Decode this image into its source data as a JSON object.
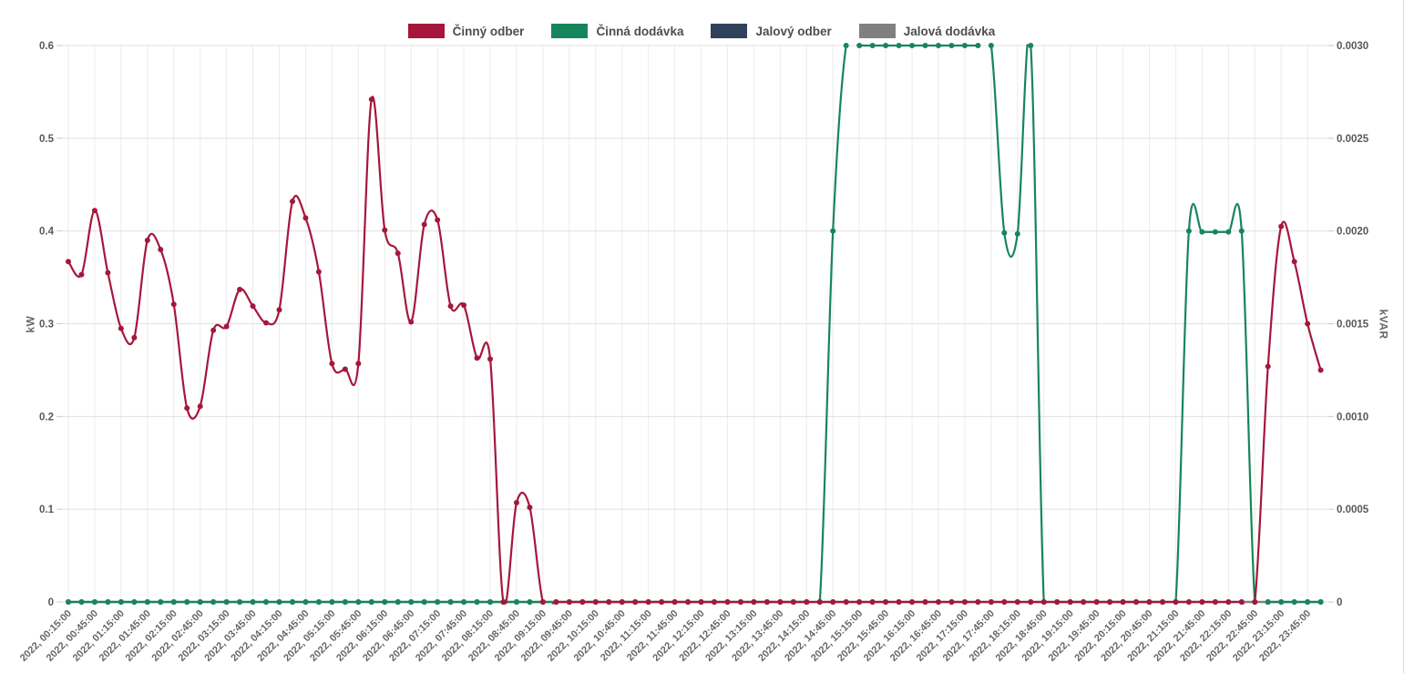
{
  "chart_data": {
    "type": "line",
    "smooth": true,
    "markers": true,
    "grid": true,
    "legend_position": "top",
    "x_axis": {
      "first_point": "2022, 00:15:00",
      "point_interval_minutes": 15,
      "points_per_tick": 2,
      "visible_tick_labels": [
        "2022, 00:15:00",
        "2022, 00:45:00",
        "2022, 01:15:00",
        "2022, 01:45:00",
        "2022, 02:15:00",
        "2022, 02:45:00",
        "2022, 03:15:00",
        "2022, 03:45:00",
        "2022, 04:15:00",
        "2022, 04:45:00",
        "2022, 05:15:00",
        "2022, 05:45:00",
        "2022, 06:15:00",
        "2022, 06:45:00",
        "2022, 07:15:00",
        "2022, 07:45:00",
        "2022, 08:15:00",
        "2022, 08:45:00",
        "2022, 09:15:00",
        "2022, 09:45:00",
        "2022, 10:15:00",
        "2022, 10:45:00",
        "2022, 11:15:00",
        "2022, 11:45:00",
        "2022, 12:15:00",
        "2022, 12:45:00",
        "2022, 13:15:00",
        "2022, 13:45:00",
        "2022, 14:15:00",
        "2022, 14:45:00",
        "2022, 15:15:00",
        "2022, 15:45:00",
        "2022, 16:15:00",
        "2022, 16:45:00",
        "2022, 17:15:00",
        "2022, 17:45:00",
        "2022, 18:15:00",
        "2022, 18:45:00",
        "2022, 19:15:00",
        "2022, 19:45:00",
        "2022, 20:15:00",
        "2022, 20:45:00",
        "2022, 21:15:00",
        "2022, 21:45:00",
        "2022, 22:15:00",
        "2022, 22:45:00",
        "2022, 23:15:00",
        "2022, 23:45:00"
      ]
    },
    "y_axis_left": {
      "title": "kW",
      "range": [
        0,
        0.6
      ],
      "tick_labels": [
        "0",
        "0.1",
        "0.2",
        "0.3",
        "0.4",
        "0.5",
        "0.6"
      ]
    },
    "y_axis_right": {
      "title": "kVAR",
      "range": [
        0,
        0.003
      ],
      "tick_labels": [
        "0",
        "0.0005",
        "0.0010",
        "0.0015",
        "0.0020",
        "0.0025",
        "0.0030"
      ]
    },
    "series": [
      {
        "name": "Činný odber",
        "color": "#A5173C",
        "y_axis": "kW",
        "values": [
          0.367,
          0.353,
          0.422,
          0.355,
          0.295,
          0.285,
          0.39,
          0.38,
          0.321,
          0.209,
          0.211,
          0.293,
          0.297,
          0.337,
          0.319,
          0.301,
          0.315,
          0.432,
          0.414,
          0.356,
          0.257,
          0.251,
          0.257,
          0.542,
          0.401,
          0.376,
          0.302,
          0.407,
          0.412,
          0.319,
          0.32,
          0.263,
          0.262,
          0,
          0.107,
          0.102,
          0,
          0,
          0,
          0,
          0,
          0,
          0,
          0,
          0,
          0,
          0,
          0,
          0,
          0,
          0,
          0,
          0,
          0,
          0,
          0,
          0,
          0,
          0,
          0,
          0,
          0,
          0,
          0,
          0,
          0,
          0,
          0,
          0,
          0,
          0,
          0,
          0,
          0,
          0,
          0,
          0,
          0,
          0,
          0,
          0,
          0,
          0,
          0,
          0,
          0,
          0,
          0,
          0,
          0,
          0,
          0.254,
          0.405,
          0.367,
          0.3,
          0.25
        ]
      },
      {
        "name": "Činná dodávka",
        "color": "#17855C",
        "y_axis": "kW",
        "values": [
          0,
          0,
          0,
          0,
          0,
          0,
          0,
          0,
          0,
          0,
          0,
          0,
          0,
          0,
          0,
          0,
          0,
          0,
          0,
          0,
          0,
          0,
          0,
          0,
          0,
          0,
          0,
          0,
          0,
          0,
          0,
          0,
          0,
          0,
          0,
          0,
          0,
          0,
          0,
          0,
          0,
          0,
          0,
          0,
          0,
          0,
          0,
          0,
          0,
          0,
          0,
          0,
          0,
          0,
          0,
          0,
          0,
          0,
          0.4,
          0.6,
          0.6,
          0.6,
          0.6,
          0.6,
          0.6,
          0.6,
          0.6,
          0.6,
          0.6,
          0.6,
          0.6,
          0.398,
          0.397,
          0.6,
          0,
          0,
          0,
          0,
          0,
          0,
          0,
          0,
          0,
          0,
          0,
          0.4,
          0.399,
          0.399,
          0.399,
          0.4,
          0,
          0,
          0,
          0,
          0,
          0
        ]
      },
      {
        "name": "Jalový odber",
        "color": "#30425A",
        "y_axis": "kVAR",
        "values": [
          0,
          0,
          0,
          0,
          0,
          0,
          0,
          0,
          0,
          0,
          0,
          0,
          0,
          0,
          0,
          0,
          0,
          0,
          0,
          0,
          0,
          0,
          0,
          0,
          0,
          0,
          0,
          0,
          0,
          0,
          0,
          0,
          0,
          0,
          0,
          0,
          0,
          0,
          0,
          0,
          0,
          0,
          0,
          0,
          0,
          0,
          0,
          0,
          0,
          0,
          0,
          0,
          0,
          0,
          0,
          0,
          0,
          0,
          0,
          0,
          0,
          0,
          0,
          0,
          0,
          0,
          0,
          0,
          0,
          0,
          0,
          0,
          0,
          0,
          0,
          0,
          0,
          0,
          0,
          0,
          0,
          0,
          0,
          0,
          0,
          0,
          0,
          0,
          0,
          0,
          0,
          0,
          0,
          0,
          0,
          0
        ]
      },
      {
        "name": "Jalová dodávka",
        "color": "#808080",
        "y_axis": "kVAR",
        "values": [
          0,
          0,
          0,
          0,
          0,
          0,
          0,
          0,
          0,
          0,
          0,
          0,
          0,
          0,
          0,
          0,
          0,
          0,
          0,
          0,
          0,
          0,
          0,
          0,
          0,
          0,
          0,
          0,
          0,
          0,
          0,
          0,
          0,
          0,
          0,
          0,
          0,
          0,
          0,
          0,
          0,
          0,
          0,
          0,
          0,
          0,
          0,
          0,
          0,
          0,
          0,
          0,
          0,
          0,
          0,
          0,
          0,
          0,
          0,
          0,
          0,
          0,
          0,
          0,
          0,
          0,
          0,
          0,
          0,
          0,
          0,
          0,
          0,
          0,
          0,
          0,
          0,
          0,
          0,
          0,
          0,
          0,
          0,
          0,
          0,
          0,
          0,
          0,
          0,
          0,
          0,
          0,
          0,
          0,
          0,
          0
        ]
      }
    ]
  }
}
